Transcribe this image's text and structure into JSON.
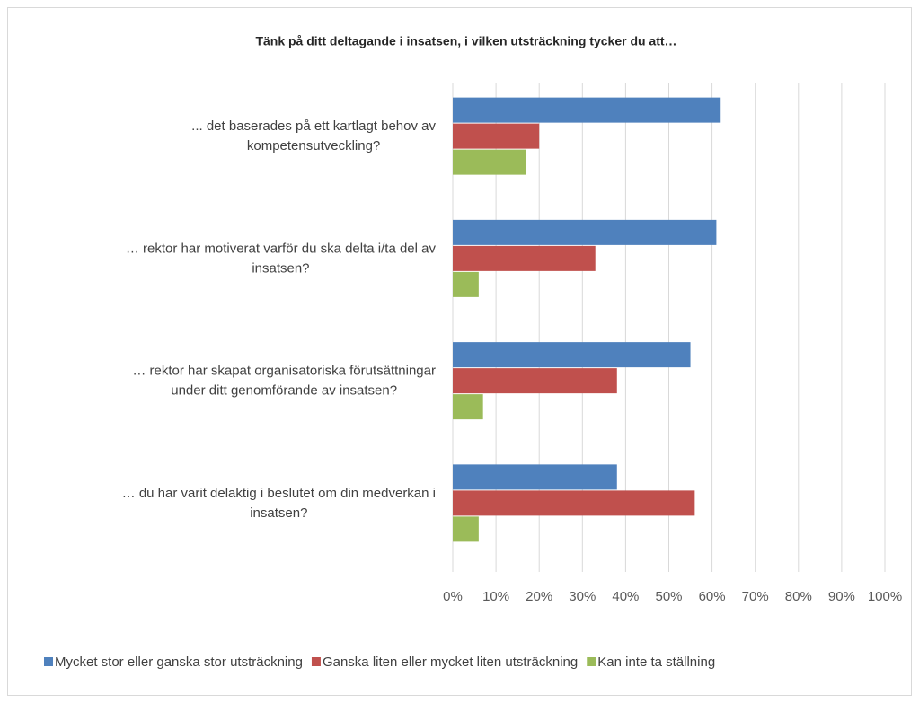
{
  "chart_data": {
    "type": "barh",
    "title": "Tänk på ditt deltagande i insatsen, i vilken utsträckning tycker du att…",
    "categories": [
      [
        "... det baserades på ett kartlagt behov av",
        "kompetensutveckling?"
      ],
      [
        "… rektor har motiverat varför du ska delta i/ta del av",
        "insatsen?"
      ],
      [
        "… rektor har skapat organisatoriska förutsättningar",
        "under ditt genomförande av insatsen?"
      ],
      [
        "… du har varit delaktig i beslutet om din medverkan i",
        "insatsen?"
      ]
    ],
    "series": [
      {
        "name": "Mycket stor eller ganska stor utsträckning",
        "color": "#4f81bd",
        "values": [
          62,
          61,
          55,
          38
        ]
      },
      {
        "name": "Ganska liten eller mycket liten utsträckning",
        "color": "#c0504d",
        "values": [
          20,
          33,
          38,
          56
        ]
      },
      {
        "name": "Kan inte ta ställning",
        "color": "#9bbb59",
        "values": [
          17,
          6,
          7,
          6
        ]
      }
    ],
    "xlim": [
      0,
      100
    ],
    "xticks": [
      {
        "value": 0,
        "label": "0%"
      },
      {
        "value": 10,
        "label": "10%"
      },
      {
        "value": 20,
        "label": "20%"
      },
      {
        "value": 30,
        "label": "30%"
      },
      {
        "value": 40,
        "label": "40%"
      },
      {
        "value": 50,
        "label": "50%"
      },
      {
        "value": 60,
        "label": "60%"
      },
      {
        "value": 70,
        "label": "70%"
      },
      {
        "value": 80,
        "label": "80%"
      },
      {
        "value": 90,
        "label": "90%"
      },
      {
        "value": 100,
        "label": "100%"
      }
    ],
    "grid": true,
    "legend": "bottom"
  }
}
